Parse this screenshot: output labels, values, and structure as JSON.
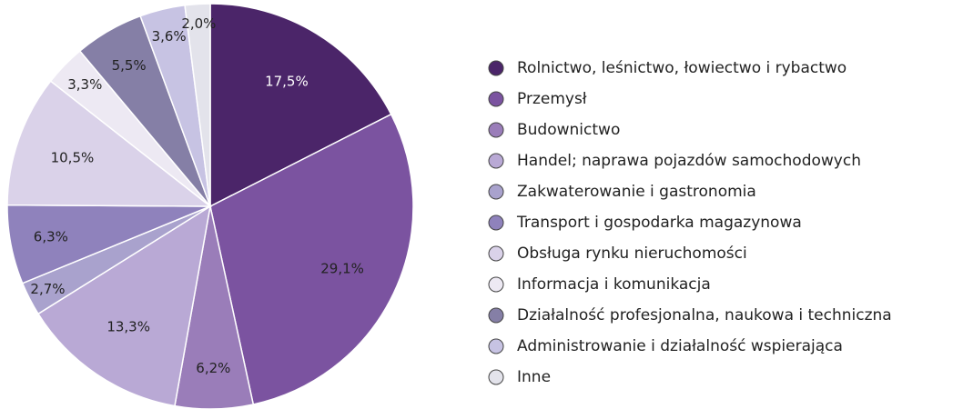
{
  "chart_data": {
    "type": "pie",
    "categories": [
      "Rolnictwo, leśnictwo, łowiectwo i rybactwo",
      "Przemysł",
      "Budownictwo",
      "Handel; naprawa pojazdów samochodowych",
      "Zakwaterowanie i gastronomia",
      "Transport i gospodarka magazynowa",
      "Obsługa rynku nieruchomości",
      "Informacja i komunikacja",
      "Działalność profesjonalna, naukowa i techniczna",
      "Administrowanie i działalność wspierająca",
      "Inne"
    ],
    "values": [
      17.5,
      29.1,
      6.2,
      13.3,
      2.7,
      6.3,
      10.5,
      3.3,
      5.5,
      3.6,
      2.0
    ],
    "value_labels": [
      "17,5%",
      "29,1%",
      "6,2%",
      "13,3%",
      "2,7%",
      "6,3%",
      "10,5%",
      "3,3%",
      "5,5%",
      "3,6%",
      "2,0%"
    ],
    "colors": [
      "#4b2569",
      "#7b53a0",
      "#9a7db9",
      "#b9a9d5",
      "#a9a2cd",
      "#8f82bc",
      "#dad2e9",
      "#ede9f3",
      "#857fa6",
      "#c7c3e3",
      "#e3e3eb"
    ],
    "legend": "right"
  }
}
